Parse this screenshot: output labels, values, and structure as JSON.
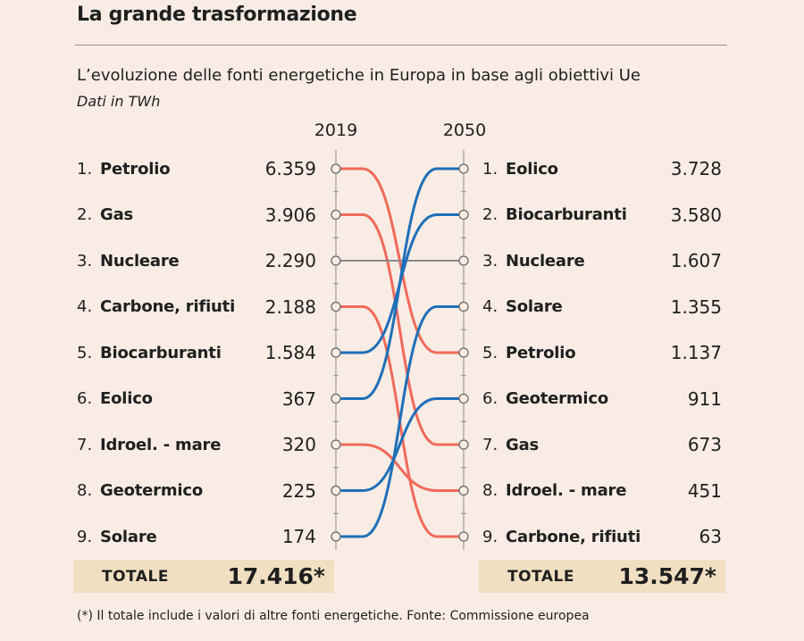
{
  "title": "La grande trasformazione",
  "subtitle": "L’evoluzione delle fonti energetiche in Europa in base agli obiettivi Ue",
  "unit": "Dati in TWh",
  "footnote": "(*) Il totale include i valori di altre fonti energetiche. Fonte: Commissione europea",
  "colors": {
    "fossil": "#f06a5a",
    "renewable": "#1f6fb8",
    "nuclear": "#8a8a8a",
    "total_bg": "#f1dfc2"
  },
  "chart_data": {
    "type": "bump",
    "years": [
      "2019",
      "2050"
    ],
    "left": [
      {
        "rank": "1.",
        "name": "Petrolio",
        "value": "6.359"
      },
      {
        "rank": "2.",
        "name": "Gas",
        "value": "3.906"
      },
      {
        "rank": "3.",
        "name": "Nucleare",
        "value": "2.290"
      },
      {
        "rank": "4.",
        "name": "Carbone, rifiuti",
        "value": "2.188"
      },
      {
        "rank": "5.",
        "name": "Biocarburanti",
        "value": "1.584"
      },
      {
        "rank": "6.",
        "name": "Eolico",
        "value": "367"
      },
      {
        "rank": "7.",
        "name": "Idroel. - mare",
        "value": "320"
      },
      {
        "rank": "8.",
        "name": "Geotermico",
        "value": "225"
      },
      {
        "rank": "9.",
        "name": "Solare",
        "value": "174"
      }
    ],
    "right": [
      {
        "rank": "1.",
        "name": "Eolico",
        "value": "3.728"
      },
      {
        "rank": "2.",
        "name": "Biocarburanti",
        "value": "3.580"
      },
      {
        "rank": "3.",
        "name": "Nucleare",
        "value": "1.607"
      },
      {
        "rank": "4.",
        "name": "Solare",
        "value": "1.355"
      },
      {
        "rank": "5.",
        "name": "Petrolio",
        "value": "1.137"
      },
      {
        "rank": "6.",
        "name": "Geotermico",
        "value": "911"
      },
      {
        "rank": "7.",
        "name": "Gas",
        "value": "673"
      },
      {
        "rank": "8.",
        "name": "Idroel. - mare",
        "value": "451"
      },
      {
        "rank": "9.",
        "name": "Carbone, rifiuti",
        "value": "63"
      }
    ],
    "links": [
      {
        "from": 1,
        "to": 5,
        "group": "fossil"
      },
      {
        "from": 2,
        "to": 7,
        "group": "fossil"
      },
      {
        "from": 3,
        "to": 3,
        "group": "nuclear"
      },
      {
        "from": 4,
        "to": 9,
        "group": "fossil"
      },
      {
        "from": 5,
        "to": 2,
        "group": "renewable"
      },
      {
        "from": 6,
        "to": 1,
        "group": "renewable"
      },
      {
        "from": 7,
        "to": 8,
        "group": "fossil"
      },
      {
        "from": 8,
        "to": 6,
        "group": "renewable"
      },
      {
        "from": 9,
        "to": 4,
        "group": "renewable"
      }
    ],
    "totals": {
      "label": "TOTALE",
      "left": "17.416*",
      "right": "13.547*"
    }
  }
}
